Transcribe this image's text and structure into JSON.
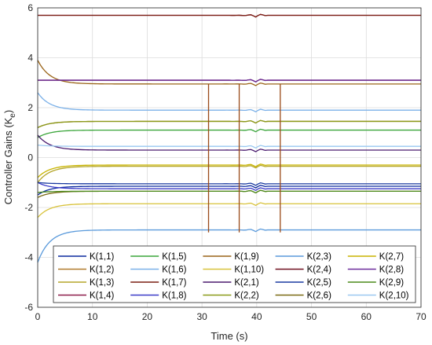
{
  "chart_data": {
    "type": "line",
    "title": "",
    "xlabel": "Time (s)",
    "ylabel_main": "Controller Gains (K",
    "ylabel_sub": "e",
    "ylabel_close": ")",
    "xlim": [
      0,
      70
    ],
    "ylim": [
      -6,
      6
    ],
    "xticks": [
      "0",
      "10",
      "20",
      "30",
      "40",
      "50",
      "60",
      "70"
    ],
    "yticks": [
      "-6",
      "-4",
      "-2",
      "0",
      "2",
      "4",
      "6"
    ],
    "grid": true,
    "legend_position": "bottom",
    "legend_columns": 5,
    "series": [
      {
        "name": "K(1,1)",
        "color": "#0b2a9e",
        "start": -1.5,
        "final": -1.15
      },
      {
        "name": "K(1,2)",
        "color": "#b07a2a",
        "start": 1.2,
        "final": 1.45
      },
      {
        "name": "K(1,3)",
        "color": "#b5a62a",
        "start": -1.0,
        "final": -0.35
      },
      {
        "name": "K(1,4)",
        "color": "#8e1d4a",
        "start": 5.7,
        "final": 5.7
      },
      {
        "name": "K(1,5)",
        "color": "#3aa53a",
        "start": 0.8,
        "final": 1.1
      },
      {
        "name": "K(1,6)",
        "color": "#7ab0e8",
        "start": 2.6,
        "final": 1.9
      },
      {
        "name": "K(1,7)",
        "color": "#7a1f12",
        "start": 5.7,
        "final": 5.7
      },
      {
        "name": "K(1,8)",
        "color": "#3b3bc8",
        "start": -1.0,
        "final": -1.25
      },
      {
        "name": "K(1,9)",
        "color": "#9a6418",
        "start": 3.9,
        "final": 2.95
      },
      {
        "name": "K(1,10)",
        "color": "#d8c23a",
        "start": -2.4,
        "final": -1.85
      },
      {
        "name": "K(2,1)",
        "color": "#4a1a6e",
        "start": 0.9,
        "final": 0.3
      },
      {
        "name": "K(2,2)",
        "color": "#8a9a1a",
        "start": 1.2,
        "final": 1.45
      },
      {
        "name": "K(2,3)",
        "color": "#5a9adb",
        "start": -4.2,
        "final": -2.9
      },
      {
        "name": "K(2,4)",
        "color": "#6e0f1e",
        "start": 3.1,
        "final": 3.1
      },
      {
        "name": "K(2,5)",
        "color": "#1a3aa0",
        "start": -1.0,
        "final": -1.05
      },
      {
        "name": "K(2,6)",
        "color": "#7a6a14",
        "start": -1.6,
        "final": -1.35
      },
      {
        "name": "K(2,7)",
        "color": "#c8b400",
        "start": -0.8,
        "final": -0.3
      },
      {
        "name": "K(2,8)",
        "color": "#6a2a9a",
        "start": 3.1,
        "final": 3.1
      },
      {
        "name": "K(2,9)",
        "color": "#4a8a1a",
        "start": -1.4,
        "final": -1.35
      },
      {
        "name": "K(2,10)",
        "color": "#9ac8f0",
        "start": 0.5,
        "final": 0.45
      }
    ],
    "spikes": [
      {
        "x": 31.2,
        "y_top": 2.95,
        "y_bottom": -3.0,
        "color": "#9a4a18"
      },
      {
        "x": 36.8,
        "y_top": 2.95,
        "y_bottom": -3.0,
        "color": "#9a4a18"
      },
      {
        "x": 44.3,
        "y_top": 2.95,
        "y_bottom": -3.0,
        "color": "#9a4a18"
      }
    ]
  }
}
